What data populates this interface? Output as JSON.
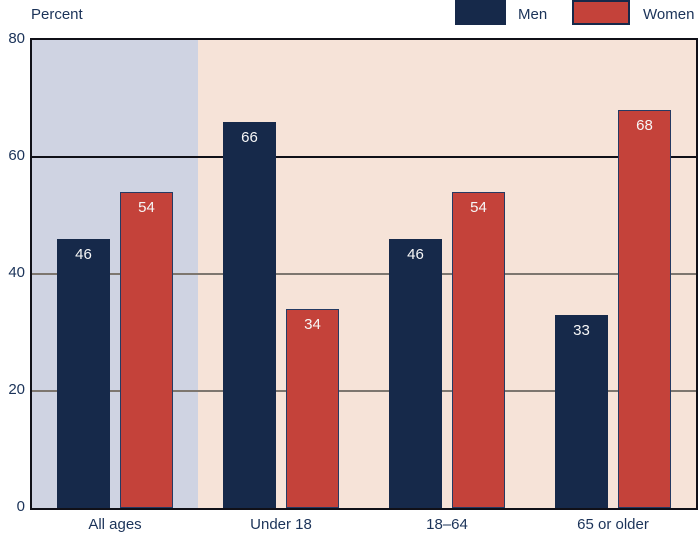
{
  "chart_data": {
    "type": "bar",
    "title": "",
    "ylabel": "Percent",
    "xlabel": "",
    "categories": [
      "All ages",
      "Under 18",
      "18–64",
      "65 or older"
    ],
    "series": [
      {
        "name": "Men",
        "color": "#16294a",
        "border": "#16294a",
        "values": [
          46,
          66,
          46,
          33
        ]
      },
      {
        "name": "Women",
        "color": "#c4423a",
        "border": "#253a63",
        "values": [
          54,
          34,
          54,
          68
        ]
      }
    ],
    "ylim": [
      0,
      80
    ],
    "yticks": [
      0,
      20,
      40,
      60,
      80
    ],
    "gridlines": [
      {
        "value": 20,
        "shade": "gray"
      },
      {
        "value": 40,
        "shade": "gray"
      },
      {
        "value": 60,
        "shade": "dark"
      }
    ],
    "grid_on": true,
    "legend_position": "top-right",
    "bar_value_labels": "inside-top",
    "highlight_band": {
      "category": "All ages",
      "color": "#cfd3e2"
    },
    "plot_background": "#f6e3d8"
  },
  "colors": {
    "navy": "#16294a",
    "red": "#c4423a",
    "band_lavender": "#cfd3e2",
    "plot_peach": "#f6e3d8",
    "grid_gray": "#7d766f",
    "grid_dark": "#101018",
    "frame_black": "#101018",
    "text_navy": "#1b3359",
    "bar_label_white": "#f7f7f7"
  }
}
